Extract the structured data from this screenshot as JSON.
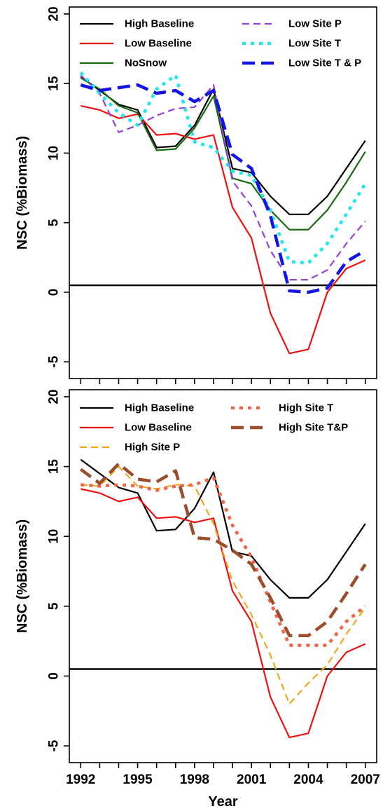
{
  "chart_data": [
    {
      "type": "line",
      "ylabel": "NSC (%Biomass)",
      "xlabel": "",
      "ylim": [
        -6.2,
        20.5
      ],
      "xlim": [
        1991.4,
        2007.6
      ],
      "y_ticks": [
        "-5",
        "0",
        "5",
        "10",
        "15",
        "20"
      ],
      "x_ticks": [
        "1992",
        "1995",
        "1998",
        "2001",
        "2004",
        "2007"
      ],
      "reference_line": 0.5,
      "legend_position": "top",
      "x": [
        1992,
        1993,
        1994,
        1995,
        1996,
        1997,
        1998,
        1999,
        2000,
        2001,
        2002,
        2003,
        2004,
        2005,
        2006,
        2007
      ],
      "series": [
        {
          "name": "High Baseline",
          "color": "#000000",
          "dash": "solid",
          "width": 2.2,
          "values": [
            15.5,
            14.5,
            13.5,
            13.1,
            10.4,
            10.5,
            12.0,
            14.6,
            8.9,
            8.6,
            6.9,
            5.6,
            5.6,
            6.9,
            8.9,
            10.9
          ]
        },
        {
          "name": "Low Baseline",
          "color": "#ee1111",
          "dash": "solid",
          "width": 2.2,
          "values": [
            13.4,
            13.1,
            12.5,
            12.8,
            11.3,
            11.4,
            11.0,
            11.3,
            6.1,
            3.9,
            -1.5,
            -4.4,
            -4.1,
            0.0,
            1.7,
            2.3
          ]
        },
        {
          "name": "NoSnow",
          "color": "#1a6b12",
          "dash": "solid",
          "width": 2.2,
          "values": [
            15.4,
            14.6,
            13.4,
            12.9,
            10.2,
            10.3,
            11.8,
            14.1,
            8.2,
            7.8,
            5.9,
            4.5,
            4.5,
            5.9,
            7.9,
            10.1
          ]
        },
        {
          "name": "Low Site P",
          "color": "#9a40d8",
          "dash": "10,6",
          "width": 2.2,
          "values": [
            15.6,
            14.3,
            11.5,
            12.0,
            12.7,
            13.2,
            13.3,
            14.9,
            8.0,
            6.2,
            3.0,
            0.9,
            0.9,
            1.6,
            3.5,
            5.1
          ]
        },
        {
          "name": "Low Site T",
          "color": "#22e6ec",
          "dash": "5,7",
          "width": 4.5,
          "values": [
            15.8,
            14.3,
            12.9,
            12.0,
            14.6,
            15.6,
            10.8,
            10.4,
            8.7,
            8.4,
            5.9,
            2.2,
            2.1,
            3.5,
            5.6,
            7.8
          ]
        },
        {
          "name": "Low Site T & P",
          "color": "#1414e6",
          "dash": "18,9",
          "width": 4.5,
          "values": [
            14.9,
            14.5,
            14.7,
            14.9,
            14.3,
            14.5,
            13.7,
            14.5,
            9.9,
            8.9,
            5.5,
            0.1,
            0.0,
            0.3,
            2.2,
            3.0
          ]
        }
      ]
    },
    {
      "type": "line",
      "ylabel": "NSC (%Biomass)",
      "xlabel": "Year",
      "ylim": [
        -6.2,
        20.5
      ],
      "xlim": [
        1991.4,
        2007.6
      ],
      "y_ticks": [
        "-5",
        "0",
        "5",
        "10",
        "15",
        "20"
      ],
      "x_ticks": [
        "1992",
        "1995",
        "1998",
        "2001",
        "2004",
        "2007"
      ],
      "reference_line": 0.5,
      "legend_position": "top",
      "x": [
        1992,
        1993,
        1994,
        1995,
        1996,
        1997,
        1998,
        1999,
        2000,
        2001,
        2002,
        2003,
        2004,
        2005,
        2006,
        2007
      ],
      "series": [
        {
          "name": "High Baseline",
          "color": "#000000",
          "dash": "solid",
          "width": 2.2,
          "values": [
            15.5,
            14.5,
            13.5,
            13.1,
            10.4,
            10.5,
            12.0,
            14.6,
            8.9,
            8.6,
            6.9,
            5.6,
            5.6,
            6.9,
            8.9,
            10.9
          ]
        },
        {
          "name": "Low Baseline",
          "color": "#ee1111",
          "dash": "solid",
          "width": 2.2,
          "values": [
            13.4,
            13.1,
            12.5,
            12.8,
            11.3,
            11.4,
            11.0,
            11.3,
            6.1,
            3.9,
            -1.5,
            -4.4,
            -4.1,
            0.0,
            1.7,
            2.3
          ]
        },
        {
          "name": "High Site P",
          "color": "#f0a820",
          "dash": "10,6",
          "width": 2.2,
          "values": [
            13.7,
            13.6,
            15.0,
            13.6,
            13.4,
            13.7,
            13.6,
            10.9,
            6.8,
            4.4,
            1.5,
            -2.0,
            -0.5,
            0.8,
            3.0,
            4.9
          ]
        },
        {
          "name": "High Site T",
          "color": "#f06448",
          "dash": "5,7",
          "width": 4.5,
          "values": [
            13.7,
            13.6,
            13.7,
            13.6,
            13.3,
            13.6,
            13.7,
            14.2,
            10.8,
            8.5,
            5.3,
            2.2,
            2.2,
            2.2,
            3.9,
            5.0
          ]
        },
        {
          "name": "High Site T&P",
          "color": "#9a4e2c",
          "dash": "18,9",
          "width": 4.5,
          "values": [
            14.8,
            13.8,
            15.2,
            14.1,
            13.9,
            14.7,
            9.9,
            9.8,
            9.0,
            8.0,
            5.6,
            2.9,
            2.9,
            3.9,
            5.9,
            8.0
          ]
        }
      ]
    }
  ]
}
